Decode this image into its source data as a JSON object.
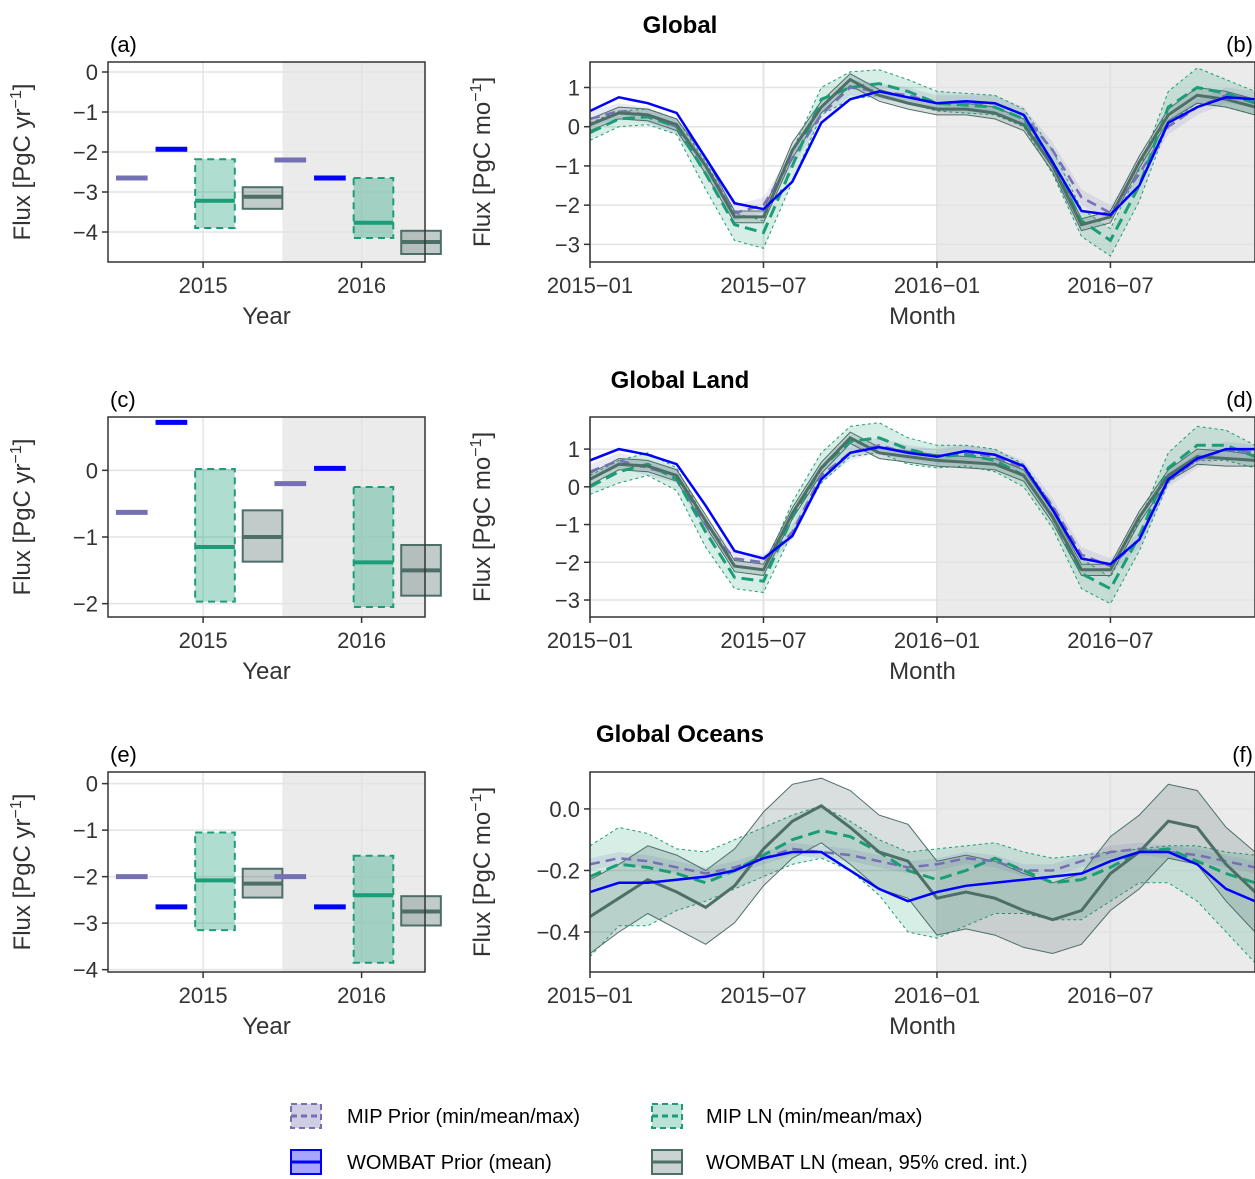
{
  "figure": {
    "titles": [
      "Global",
      "Global Land",
      "Global Oceans"
    ],
    "legend": [
      {
        "label": "MIP Prior (min/mean/max)",
        "color": "#7570b3",
        "style": "dashed"
      },
      {
        "label": "MIP LN (min/mean/max)",
        "color": "#1b9e77",
        "style": "dashed"
      },
      {
        "label": "WOMBAT Prior (mean)",
        "color": "#0000ff",
        "style": "solid"
      },
      {
        "label": "WOMBAT LN (mean, 95% cred. int.)",
        "color": "#4e6e68",
        "style": "solid"
      }
    ]
  },
  "chart_data": [
    {
      "tag": "(a)",
      "type": "bar",
      "title": "Global",
      "xlabel": "Year",
      "ylabel_main": "Flux [PgC yr",
      "ylabel_sup": "−1",
      "ylabel_end": "]",
      "ylim": [
        -4.75,
        0.25
      ],
      "yticks": [
        0,
        -1,
        -2,
        -3,
        -4
      ],
      "categories": [
        "2015",
        "2016"
      ],
      "series": {
        "mip_prior": [
          -2.65,
          -2.2
        ],
        "wombat_prior": [
          -1.93,
          -2.65
        ],
        "mip_ln": [
          {
            "min": -3.9,
            "mean": -3.22,
            "max": -2.18
          },
          {
            "min": -4.15,
            "mean": -3.77,
            "max": -2.65
          }
        ],
        "wombat_ln": [
          {
            "lo": -3.42,
            "mean": -3.12,
            "hi": -2.88
          },
          {
            "lo": -4.55,
            "mean": -4.25,
            "hi": -3.97
          }
        ]
      }
    },
    {
      "tag": "(b)",
      "type": "line",
      "title": "Global",
      "xlabel": "Month",
      "ylabel_main": "Flux [PgC mo",
      "ylabel_sup": "−1",
      "ylabel_end": "]",
      "ylim": [
        -3.45,
        1.65
      ],
      "yticks": [
        1,
        0,
        -1,
        -2,
        -3
      ],
      "xticks": [
        "2015−01",
        "2015−07",
        "2016−01",
        "2016−07"
      ],
      "series": {
        "mip_prior_mean": [
          0.2,
          0.4,
          0.3,
          0.0,
          -1.0,
          -2.2,
          -2.0,
          -0.8,
          0.3,
          1.0,
          0.9,
          0.8,
          0.6,
          0.6,
          0.6,
          0.3,
          -0.6,
          -1.8,
          -2.2,
          -1.2,
          0.0,
          0.5,
          0.8,
          0.7
        ],
        "mip_prior_min": [
          0.0,
          0.2,
          0.1,
          -0.2,
          -1.2,
          -2.4,
          -2.2,
          -1.0,
          0.1,
          0.8,
          0.7,
          0.6,
          0.4,
          0.4,
          0.4,
          0.1,
          -0.8,
          -2.0,
          -2.4,
          -1.4,
          -0.2,
          0.3,
          0.6,
          0.5
        ],
        "mip_prior_max": [
          0.4,
          0.6,
          0.5,
          0.2,
          -0.8,
          -2.0,
          -1.8,
          -0.6,
          0.5,
          1.2,
          1.1,
          1.0,
          0.8,
          0.8,
          0.8,
          0.5,
          -0.4,
          -1.6,
          -2.0,
          -1.0,
          0.2,
          0.7,
          1.0,
          0.9
        ],
        "wombat_prior": [
          0.4,
          0.75,
          0.6,
          0.35,
          -0.8,
          -1.95,
          -2.1,
          -1.4,
          0.1,
          0.7,
          0.9,
          0.75,
          0.6,
          0.65,
          0.6,
          0.3,
          -0.9,
          -2.15,
          -2.25,
          -1.5,
          0.1,
          0.5,
          0.75,
          0.7
        ],
        "mip_ln_mean": [
          -0.15,
          0.2,
          0.25,
          0.0,
          -1.2,
          -2.5,
          -2.7,
          -1.0,
          0.7,
          1.0,
          1.1,
          0.9,
          0.6,
          0.55,
          0.5,
          0.2,
          -0.9,
          -2.4,
          -2.9,
          -1.5,
          0.5,
          1.0,
          0.85,
          0.6
        ],
        "mip_ln_min": [
          -0.35,
          0.0,
          0.05,
          -0.2,
          -1.6,
          -2.9,
          -3.1,
          -1.4,
          0.3,
          0.7,
          0.8,
          0.6,
          0.4,
          0.35,
          0.3,
          0.0,
          -1.2,
          -2.8,
          -3.3,
          -1.9,
          0.1,
          0.6,
          0.5,
          0.3
        ],
        "mip_ln_max": [
          0.1,
          0.4,
          0.45,
          0.2,
          -0.9,
          -2.2,
          -2.4,
          -0.6,
          1.0,
          1.4,
          1.45,
          1.2,
          0.9,
          0.85,
          0.8,
          0.45,
          -0.6,
          -2.1,
          -2.6,
          -1.1,
          0.9,
          1.5,
          1.2,
          0.9
        ],
        "wombat_ln_mean": [
          0.05,
          0.35,
          0.3,
          0.05,
          -1.0,
          -2.3,
          -2.3,
          -0.6,
          0.5,
          1.2,
          0.8,
          0.6,
          0.45,
          0.45,
          0.35,
          0.05,
          -1.0,
          -2.5,
          -2.3,
          -0.9,
          0.3,
          0.8,
          0.7,
          0.5
        ],
        "wombat_ln_lo": [
          -0.1,
          0.2,
          0.15,
          -0.1,
          -1.2,
          -2.45,
          -2.45,
          -0.8,
          0.35,
          1.05,
          0.65,
          0.45,
          0.3,
          0.3,
          0.2,
          -0.1,
          -1.15,
          -2.65,
          -2.45,
          -1.05,
          0.15,
          0.6,
          0.5,
          0.3
        ],
        "wombat_ln_hi": [
          0.2,
          0.5,
          0.45,
          0.2,
          -0.8,
          -2.15,
          -2.15,
          -0.4,
          0.65,
          1.35,
          0.95,
          0.75,
          0.6,
          0.6,
          0.5,
          0.2,
          -0.85,
          -2.35,
          -2.15,
          -0.75,
          0.45,
          1.0,
          0.9,
          0.7
        ]
      }
    },
    {
      "tag": "(c)",
      "type": "bar",
      "title": "Global Land",
      "xlabel": "Year",
      "ylabel_main": "Flux [PgC yr",
      "ylabel_sup": "−1",
      "ylabel_end": "]",
      "ylim": [
        -2.2,
        0.8
      ],
      "yticks": [
        0,
        -1,
        -2
      ],
      "categories": [
        "2015",
        "2016"
      ],
      "series": {
        "mip_prior": [
          -0.63,
          -0.2
        ],
        "wombat_prior": [
          0.72,
          0.03
        ],
        "mip_ln": [
          {
            "min": -1.97,
            "mean": -1.15,
            "max": 0.02
          },
          {
            "min": -2.05,
            "mean": -1.38,
            "max": -0.25
          }
        ],
        "wombat_ln": [
          {
            "lo": -1.37,
            "mean": -1.0,
            "hi": -0.6
          },
          {
            "lo": -1.88,
            "mean": -1.5,
            "hi": -1.12
          }
        ]
      }
    },
    {
      "tag": "(d)",
      "type": "line",
      "title": "Global Land",
      "xlabel": "Month",
      "ylabel_main": "Flux [PgC mo",
      "ylabel_sup": "−1",
      "ylabel_end": "]",
      "ylim": [
        -3.45,
        1.85
      ],
      "yticks": [
        1,
        0,
        -1,
        -2,
        -3
      ],
      "xticks": [
        "2015−01",
        "2015−07",
        "2016−01",
        "2016−07"
      ],
      "series": {
        "mip_prior_mean": [
          0.4,
          0.7,
          0.5,
          0.3,
          -1.0,
          -1.9,
          -2.0,
          -1.2,
          0.3,
          0.9,
          1.1,
          0.9,
          0.8,
          0.9,
          0.8,
          0.5,
          -0.5,
          -1.8,
          -2.1,
          -1.4,
          0.2,
          0.7,
          1.0,
          0.9
        ],
        "mip_prior_min": [
          0.2,
          0.5,
          0.3,
          0.1,
          -1.2,
          -2.1,
          -2.2,
          -1.4,
          0.1,
          0.7,
          0.9,
          0.7,
          0.6,
          0.7,
          0.6,
          0.3,
          -0.7,
          -2.0,
          -2.3,
          -1.6,
          0.0,
          0.5,
          0.8,
          0.7
        ],
        "mip_prior_max": [
          0.6,
          0.9,
          0.7,
          0.5,
          -0.8,
          -1.7,
          -1.8,
          -1.0,
          0.5,
          1.1,
          1.3,
          1.1,
          1.0,
          1.1,
          1.0,
          0.7,
          -0.3,
          -1.6,
          -1.9,
          -1.2,
          0.4,
          0.9,
          1.2,
          1.1
        ],
        "wombat_prior": [
          0.7,
          1.0,
          0.85,
          0.6,
          -0.5,
          -1.7,
          -1.9,
          -1.3,
          0.2,
          0.9,
          1.05,
          0.9,
          0.8,
          0.95,
          0.85,
          0.55,
          -0.6,
          -1.9,
          -2.05,
          -1.4,
          0.2,
          0.75,
          1.0,
          1.0
        ],
        "mip_ln_mean": [
          0.0,
          0.4,
          0.6,
          0.2,
          -1.2,
          -2.4,
          -2.5,
          -0.8,
          0.5,
          1.2,
          1.3,
          1.0,
          0.8,
          0.85,
          0.7,
          0.3,
          -0.8,
          -2.3,
          -2.7,
          -1.3,
          0.5,
          1.1,
          1.1,
          0.8
        ],
        "mip_ln_min": [
          -0.2,
          0.1,
          0.3,
          -0.1,
          -1.6,
          -2.7,
          -2.8,
          -1.2,
          0.1,
          0.8,
          0.9,
          0.6,
          0.5,
          0.55,
          0.4,
          0.0,
          -1.1,
          -2.7,
          -3.1,
          -1.7,
          0.1,
          0.7,
          0.7,
          0.5
        ],
        "mip_ln_max": [
          0.3,
          0.7,
          0.9,
          0.5,
          -0.9,
          -2.1,
          -2.2,
          -0.4,
          0.9,
          1.6,
          1.7,
          1.3,
          1.1,
          1.1,
          1.0,
          0.6,
          -0.5,
          -1.9,
          -2.4,
          -0.9,
          0.9,
          1.6,
          1.5,
          1.1
        ],
        "wombat_ln_mean": [
          0.2,
          0.6,
          0.55,
          0.3,
          -0.9,
          -2.1,
          -2.2,
          -0.7,
          0.5,
          1.3,
          0.9,
          0.8,
          0.7,
          0.65,
          0.6,
          0.3,
          -0.8,
          -2.2,
          -2.2,
          -0.8,
          0.3,
          0.8,
          0.75,
          0.7
        ],
        "wombat_ln_lo": [
          0.05,
          0.45,
          0.4,
          0.15,
          -1.05,
          -2.25,
          -2.35,
          -0.85,
          0.35,
          1.15,
          0.75,
          0.65,
          0.55,
          0.5,
          0.45,
          0.15,
          -0.95,
          -2.35,
          -2.35,
          -0.95,
          0.15,
          0.6,
          0.55,
          0.55
        ],
        "wombat_ln_hi": [
          0.35,
          0.75,
          0.7,
          0.45,
          -0.75,
          -1.95,
          -2.05,
          -0.55,
          0.65,
          1.45,
          1.05,
          0.95,
          0.85,
          0.8,
          0.75,
          0.45,
          -0.65,
          -2.05,
          -2.05,
          -0.65,
          0.45,
          1.0,
          0.95,
          0.85
        ]
      }
    },
    {
      "tag": "(e)",
      "type": "bar",
      "title": "Global Oceans",
      "xlabel": "Year",
      "ylabel_main": "Flux [PgC yr",
      "ylabel_sup": "−1",
      "ylabel_end": "]",
      "ylim": [
        -4.05,
        0.25
      ],
      "yticks": [
        0,
        -1,
        -2,
        -3,
        -4
      ],
      "categories": [
        "2015",
        "2016"
      ],
      "series": {
        "mip_prior": [
          -2.0,
          -2.0
        ],
        "wombat_prior": [
          -2.65,
          -2.65
        ],
        "mip_ln": [
          {
            "min": -3.15,
            "mean": -2.08,
            "max": -1.05
          },
          {
            "min": -3.85,
            "mean": -2.4,
            "max": -1.55
          }
        ],
        "wombat_ln": [
          {
            "lo": -2.45,
            "mean": -2.15,
            "hi": -1.83
          },
          {
            "lo": -3.05,
            "mean": -2.75,
            "hi": -2.42
          }
        ]
      }
    },
    {
      "tag": "(f)",
      "type": "line",
      "title": "Global Oceans",
      "xlabel": "Month",
      "ylabel_main": "Flux [PgC mo",
      "ylabel_sup": "−1",
      "ylabel_end": "]",
      "ylim": [
        -0.53,
        0.12
      ],
      "yticks": [
        0.0,
        -0.2,
        -0.4
      ],
      "xticks": [
        "2015−01",
        "2015−07",
        "2016−01",
        "2016−07"
      ],
      "series": {
        "mip_prior_mean": [
          -0.18,
          -0.16,
          -0.17,
          -0.19,
          -0.21,
          -0.19,
          -0.16,
          -0.13,
          -0.14,
          -0.15,
          -0.17,
          -0.19,
          -0.18,
          -0.16,
          -0.17,
          -0.2,
          -0.2,
          -0.17,
          -0.14,
          -0.13,
          -0.14,
          -0.15,
          -0.17,
          -0.19
        ],
        "mip_prior_min": [
          -0.2,
          -0.18,
          -0.19,
          -0.21,
          -0.23,
          -0.21,
          -0.18,
          -0.15,
          -0.16,
          -0.17,
          -0.19,
          -0.21,
          -0.2,
          -0.18,
          -0.19,
          -0.22,
          -0.22,
          -0.19,
          -0.16,
          -0.15,
          -0.16,
          -0.17,
          -0.19,
          -0.21
        ],
        "mip_prior_max": [
          -0.16,
          -0.14,
          -0.15,
          -0.17,
          -0.19,
          -0.17,
          -0.14,
          -0.11,
          -0.12,
          -0.13,
          -0.15,
          -0.17,
          -0.16,
          -0.14,
          -0.15,
          -0.18,
          -0.18,
          -0.15,
          -0.12,
          -0.11,
          -0.12,
          -0.13,
          -0.15,
          -0.17
        ],
        "wombat_prior": [
          -0.27,
          -0.24,
          -0.24,
          -0.23,
          -0.22,
          -0.2,
          -0.16,
          -0.14,
          -0.14,
          -0.2,
          -0.26,
          -0.3,
          -0.27,
          -0.25,
          -0.24,
          -0.23,
          -0.22,
          -0.21,
          -0.17,
          -0.14,
          -0.14,
          -0.18,
          -0.26,
          -0.3
        ],
        "mip_ln_mean": [
          -0.22,
          -0.18,
          -0.19,
          -0.21,
          -0.24,
          -0.2,
          -0.15,
          -0.1,
          -0.07,
          -0.09,
          -0.14,
          -0.2,
          -0.23,
          -0.2,
          -0.16,
          -0.2,
          -0.24,
          -0.23,
          -0.19,
          -0.14,
          -0.13,
          -0.17,
          -0.21,
          -0.24
        ],
        "mip_ln_min": [
          -0.48,
          -0.38,
          -0.38,
          -0.33,
          -0.3,
          -0.26,
          -0.22,
          -0.18,
          -0.16,
          -0.2,
          -0.28,
          -0.4,
          -0.42,
          -0.38,
          -0.34,
          -0.34,
          -0.36,
          -0.36,
          -0.3,
          -0.24,
          -0.24,
          -0.3,
          -0.4,
          -0.5
        ],
        "mip_ln_max": [
          -0.12,
          -0.06,
          -0.08,
          -0.13,
          -0.14,
          -0.1,
          -0.06,
          -0.02,
          0.01,
          -0.04,
          -0.1,
          -0.14,
          -0.13,
          -0.12,
          -0.11,
          -0.14,
          -0.16,
          -0.15,
          -0.14,
          -0.13,
          -0.12,
          -0.12,
          -0.14,
          -0.15
        ],
        "wombat_ln_mean": [
          -0.35,
          -0.29,
          -0.23,
          -0.27,
          -0.32,
          -0.25,
          -0.13,
          -0.04,
          0.01,
          -0.06,
          -0.14,
          -0.17,
          -0.29,
          -0.27,
          -0.29,
          -0.33,
          -0.36,
          -0.33,
          -0.21,
          -0.14,
          -0.04,
          -0.06,
          -0.18,
          -0.27
        ],
        "wombat_ln_lo": [
          -0.47,
          -0.4,
          -0.34,
          -0.39,
          -0.44,
          -0.37,
          -0.25,
          -0.16,
          -0.11,
          -0.18,
          -0.26,
          -0.29,
          -0.41,
          -0.39,
          -0.41,
          -0.45,
          -0.47,
          -0.44,
          -0.33,
          -0.26,
          -0.16,
          -0.18,
          -0.3,
          -0.4
        ],
        "wombat_ln_hi": [
          -0.23,
          -0.18,
          -0.12,
          -0.15,
          -0.2,
          -0.13,
          -0.01,
          0.08,
          0.1,
          0.06,
          -0.02,
          -0.05,
          -0.17,
          -0.15,
          -0.17,
          -0.21,
          -0.24,
          -0.21,
          -0.09,
          -0.02,
          0.08,
          0.06,
          -0.06,
          -0.14
        ]
      }
    }
  ]
}
